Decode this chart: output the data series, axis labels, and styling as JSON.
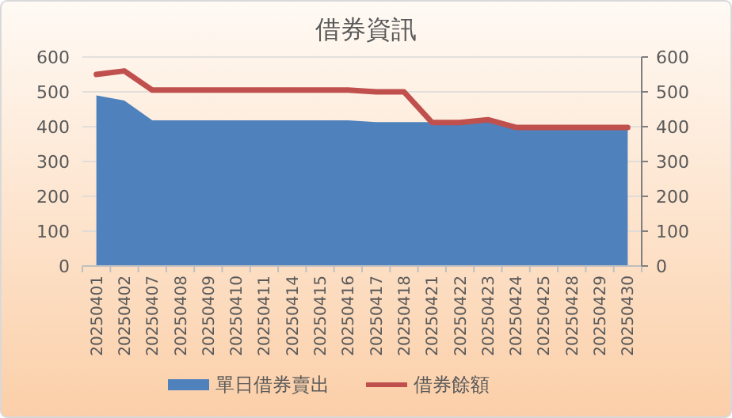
{
  "chart_data": {
    "type": "area",
    "title": "借券資訊",
    "categories": [
      "20250401",
      "20250402",
      "20250407",
      "20250408",
      "20250409",
      "20250410",
      "20250411",
      "20250414",
      "20250415",
      "20250416",
      "20250417",
      "20250418",
      "20250421",
      "20250422",
      "20250423",
      "20250424",
      "20250425",
      "20250428",
      "20250429",
      "20250430"
    ],
    "series": [
      {
        "name": "單日借券賣出",
        "color": "#4f81bd",
        "values": [
          490,
          475,
          418,
          418,
          418,
          418,
          418,
          418,
          418,
          418,
          413,
          413,
          413,
          413,
          415,
          397,
          397,
          397,
          397,
          397
        ]
      },
      {
        "name": "借券餘額",
        "type": "line",
        "axis": "y2",
        "color": "#c0504d",
        "values": [
          550,
          560,
          505,
          505,
          505,
          505,
          505,
          505,
          505,
          505,
          500,
          500,
          412,
          412,
          420,
          398,
          398,
          398,
          398,
          398
        ]
      }
    ],
    "ylim": [
      0,
      600
    ],
    "yticks": [
      0,
      100,
      200,
      300,
      400,
      500,
      600
    ],
    "y2lim": [
      0,
      600
    ],
    "y2ticks": [
      0,
      100,
      200,
      300,
      400,
      500,
      600
    ],
    "grid": "y",
    "legend": "bottom"
  }
}
